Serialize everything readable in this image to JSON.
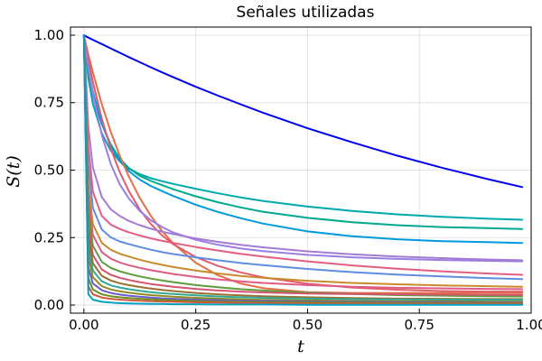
{
  "chart_data": {
    "type": "line",
    "title": "Señales utilizadas",
    "xlabel": "t",
    "ylabel": "S(t)",
    "xlim": [
      -0.03,
      1.0
    ],
    "ylim": [
      -0.03,
      1.03
    ],
    "xticks": [
      0.0,
      0.25,
      0.5,
      0.75,
      1.0
    ],
    "xtick_labels": [
      "0.00",
      "0.25",
      "0.50",
      "0.75",
      "1.00"
    ],
    "yticks": [
      0.0,
      0.25,
      0.5,
      0.75,
      1.0
    ],
    "ytick_labels": [
      "0.00",
      "0.25",
      "0.50",
      "0.75",
      "1.00"
    ],
    "grid": true,
    "legend": "none",
    "x": [
      0.0,
      0.01,
      0.02,
      0.04,
      0.06,
      0.08,
      0.1,
      0.125,
      0.15,
      0.175,
      0.2,
      0.25,
      0.3,
      0.35,
      0.4,
      0.5,
      0.6,
      0.7,
      0.8,
      0.9,
      0.98
    ],
    "series": [
      {
        "color": "#0000ee",
        "values": [
          1.0,
          0.991,
          0.983,
          0.967,
          0.951,
          0.935,
          0.919,
          0.9,
          0.881,
          0.862,
          0.844,
          0.809,
          0.776,
          0.744,
          0.713,
          0.655,
          0.603,
          0.554,
          0.509,
          0.468,
          0.437
        ]
      },
      {
        "color": "#00a9ad",
        "values": [
          1.0,
          0.84,
          0.746,
          0.636,
          0.572,
          0.532,
          0.506,
          0.485,
          0.47,
          0.459,
          0.449,
          0.431,
          0.414,
          0.399,
          0.386,
          0.365,
          0.349,
          0.336,
          0.327,
          0.32,
          0.316
        ]
      },
      {
        "color": "#00a98d",
        "values": [
          1.0,
          0.862,
          0.781,
          0.671,
          0.595,
          0.543,
          0.508,
          0.479,
          0.46,
          0.444,
          0.429,
          0.403,
          0.381,
          0.362,
          0.346,
          0.323,
          0.307,
          0.296,
          0.289,
          0.285,
          0.282
        ]
      },
      {
        "color": "#009ade",
        "values": [
          1.0,
          0.872,
          0.791,
          0.673,
          0.59,
          0.534,
          0.497,
          0.465,
          0.441,
          0.422,
          0.404,
          0.372,
          0.345,
          0.322,
          0.302,
          0.273,
          0.255,
          0.244,
          0.237,
          0.233,
          0.23
        ]
      },
      {
        "color": "#e26f46",
        "values": [
          1.0,
          0.928,
          0.862,
          0.744,
          0.642,
          0.554,
          0.478,
          0.397,
          0.33,
          0.274,
          0.228,
          0.157,
          0.11,
          0.08,
          0.063,
          0.048,
          0.045,
          0.045,
          0.045,
          0.045,
          0.045
        ]
      },
      {
        "color": "#e05b6b",
        "values": [
          1.0,
          0.909,
          0.827,
          0.69,
          0.58,
          0.493,
          0.424,
          0.354,
          0.3,
          0.258,
          0.225,
          0.178,
          0.145,
          0.121,
          0.103,
          0.079,
          0.065,
          0.057,
          0.052,
          0.05,
          0.05
        ]
      },
      {
        "color": "#9b7ee3",
        "values": [
          1.0,
          0.882,
          0.782,
          0.63,
          0.523,
          0.448,
          0.396,
          0.349,
          0.314,
          0.289,
          0.269,
          0.242,
          0.223,
          0.21,
          0.2,
          0.186,
          0.177,
          0.171,
          0.167,
          0.164,
          0.162
        ]
      },
      {
        "color": "#a47bd3",
        "values": [
          1.0,
          0.66,
          0.51,
          0.4,
          0.355,
          0.33,
          0.312,
          0.296,
          0.283,
          0.272,
          0.263,
          0.247,
          0.234,
          0.223,
          0.214,
          0.199,
          0.188,
          0.18,
          0.174,
          0.169,
          0.166
        ]
      },
      {
        "color": "#e35d81",
        "values": [
          1.0,
          0.59,
          0.42,
          0.33,
          0.298,
          0.282,
          0.27,
          0.258,
          0.247,
          0.238,
          0.23,
          0.215,
          0.202,
          0.19,
          0.18,
          0.162,
          0.147,
          0.135,
          0.125,
          0.117,
          0.112
        ]
      },
      {
        "color": "#5f8ce0",
        "values": [
          1.0,
          0.52,
          0.36,
          0.28,
          0.251,
          0.236,
          0.226,
          0.215,
          0.205,
          0.196,
          0.189,
          0.177,
          0.166,
          0.156,
          0.148,
          0.134,
          0.122,
          0.113,
          0.106,
          0.1,
          0.096
        ]
      },
      {
        "color": "#c88a2a",
        "values": [
          1.0,
          0.45,
          0.3,
          0.23,
          0.205,
          0.19,
          0.18,
          0.168,
          0.158,
          0.149,
          0.141,
          0.128,
          0.117,
          0.108,
          0.101,
          0.09,
          0.082,
          0.077,
          0.073,
          0.07,
          0.068
        ]
      },
      {
        "color": "#dd5b84",
        "values": [
          1.0,
          0.4,
          0.26,
          0.196,
          0.172,
          0.158,
          0.148,
          0.138,
          0.129,
          0.122,
          0.115,
          0.104,
          0.095,
          0.088,
          0.082,
          0.074,
          0.068,
          0.064,
          0.062,
          0.06,
          0.059
        ]
      },
      {
        "color": "#5e9c3c",
        "values": [
          1.0,
          0.35,
          0.22,
          0.16,
          0.138,
          0.125,
          0.116,
          0.106,
          0.098,
          0.091,
          0.085,
          0.074,
          0.066,
          0.059,
          0.054,
          0.046,
          0.041,
          0.037,
          0.035,
          0.033,
          0.032
        ]
      },
      {
        "color": "#d1556f",
        "values": [
          1.0,
          0.3,
          0.185,
          0.132,
          0.112,
          0.101,
          0.093,
          0.085,
          0.078,
          0.073,
          0.068,
          0.06,
          0.054,
          0.05,
          0.047,
          0.043,
          0.041,
          0.04,
          0.039,
          0.038,
          0.038
        ]
      },
      {
        "color": "#9a6f2e",
        "values": [
          1.0,
          0.26,
          0.155,
          0.108,
          0.091,
          0.081,
          0.074,
          0.067,
          0.061,
          0.056,
          0.052,
          0.045,
          0.04,
          0.036,
          0.033,
          0.029,
          0.026,
          0.024,
          0.023,
          0.022,
          0.022
        ]
      },
      {
        "color": "#2fa796",
        "values": [
          1.0,
          0.22,
          0.128,
          0.088,
          0.073,
          0.065,
          0.059,
          0.053,
          0.048,
          0.044,
          0.041,
          0.036,
          0.032,
          0.029,
          0.027,
          0.024,
          0.022,
          0.021,
          0.02,
          0.02,
          0.02
        ]
      },
      {
        "color": "#8f8a1e",
        "values": [
          1.0,
          0.18,
          0.103,
          0.07,
          0.058,
          0.051,
          0.046,
          0.041,
          0.037,
          0.034,
          0.031,
          0.027,
          0.024,
          0.021,
          0.019,
          0.017,
          0.015,
          0.014,
          0.014,
          0.013,
          0.013
        ]
      },
      {
        "color": "#6a5acd",
        "values": [
          1.0,
          0.14,
          0.08,
          0.055,
          0.045,
          0.039,
          0.035,
          0.031,
          0.028,
          0.025,
          0.023,
          0.02,
          0.018,
          0.016,
          0.015,
          0.013,
          0.012,
          0.011,
          0.011,
          0.01,
          0.01
        ]
      },
      {
        "color": "#6b8e23",
        "values": [
          1.0,
          0.1,
          0.058,
          0.04,
          0.033,
          0.029,
          0.026,
          0.023,
          0.021,
          0.019,
          0.017,
          0.015,
          0.013,
          0.012,
          0.011,
          0.01,
          0.009,
          0.008,
          0.008,
          0.008,
          0.008
        ]
      },
      {
        "color": "#cf5a3b",
        "values": [
          1.0,
          0.07,
          0.04,
          0.028,
          0.023,
          0.02,
          0.018,
          0.016,
          0.014,
          0.013,
          0.012,
          0.01,
          0.009,
          0.008,
          0.007,
          0.006,
          0.006,
          0.005,
          0.005,
          0.005,
          0.005
        ]
      },
      {
        "color": "#00a0c0",
        "values": [
          1.0,
          0.04,
          0.02,
          0.012,
          0.009,
          0.007,
          0.006,
          0.005,
          0.004,
          0.004,
          0.003,
          0.003,
          0.002,
          0.002,
          0.002,
          0.001,
          0.001,
          0.001,
          0.001,
          0.001,
          0.001
        ]
      }
    ]
  }
}
